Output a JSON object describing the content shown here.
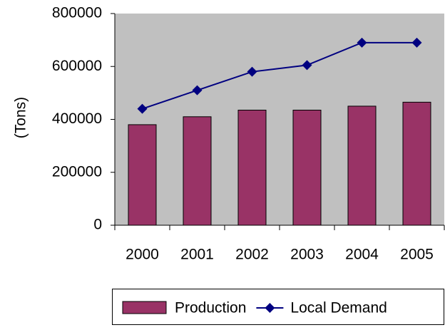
{
  "chart_data": {
    "type": "bar",
    "y_label": "(Tons)",
    "categories": [
      "2000",
      "2001",
      "2002",
      "2003",
      "2004",
      "2005"
    ],
    "series": [
      {
        "name": "Production",
        "type": "bar",
        "color": "#993366",
        "values": [
          380000,
          410000,
          435000,
          435000,
          450000,
          465000
        ]
      },
      {
        "name": "Local Demand",
        "type": "line",
        "color": "#000080",
        "values": [
          440000,
          510000,
          580000,
          605000,
          690000,
          690000
        ]
      }
    ],
    "ylim": [
      0,
      800000
    ],
    "yticks": [
      0,
      200000,
      400000,
      600000,
      800000
    ],
    "plot_background": "#c0c0c0",
    "legend": "bottom"
  }
}
